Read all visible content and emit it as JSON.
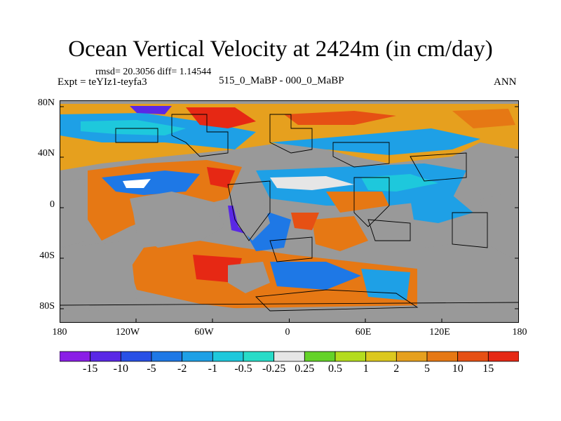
{
  "title": "Ocean Vertical Velocity at 2424m (in cm/day)",
  "stats": "rmsd= 20.3056 diff= 1.14544",
  "expt": "Expt = teYIz1-teyfa3",
  "period": "515_0_MaBP - 000_0_MaBP",
  "season": "ANN",
  "lat_ticks": [
    "80N",
    "40N",
    "0",
    "40S",
    "80S"
  ],
  "lon_ticks": [
    "180",
    "120W",
    "60W",
    "0",
    "60E",
    "120E",
    "180"
  ],
  "legend": {
    "labels": [
      "-15",
      "-10",
      "-5",
      "-2",
      "-1",
      "-0.5",
      "-0.25",
      "0.25",
      "0.5",
      "1",
      "2",
      "5",
      "10",
      "15"
    ],
    "colors": [
      "#8a1ee6",
      "#5a28e6",
      "#2850e6",
      "#1e78e6",
      "#1ea0e6",
      "#1ec8dc",
      "#28dcc8",
      "#e6e6e6",
      "#64d228",
      "#b4dc1e",
      "#dcc81e",
      "#e6a01e",
      "#e67814",
      "#e65014",
      "#e62814"
    ]
  },
  "colors": {
    "land": "#999999",
    "background": "#ffffff"
  }
}
